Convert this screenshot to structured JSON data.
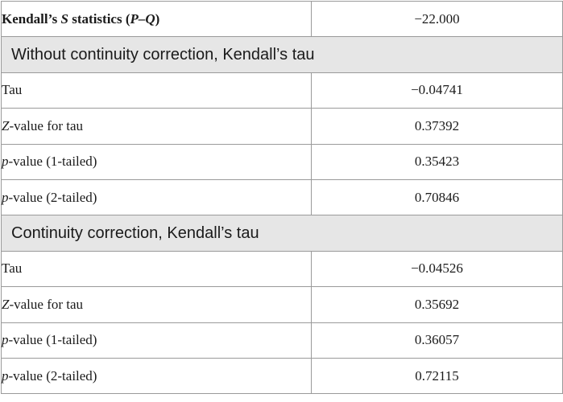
{
  "header": {
    "label_pre": "Kendall’s ",
    "label_var": "S",
    "label_mid": " statistics (",
    "label_expr": "P–Q",
    "label_post": ")",
    "value": "−22.000"
  },
  "sections": [
    {
      "title": "Without continuity correction, Kendall’s tau",
      "rows": [
        {
          "label_italic": "",
          "label_text": "Tau",
          "value": "−0.04741"
        },
        {
          "label_italic": "Z",
          "label_text": "-value for tau",
          "value": "0.37392"
        },
        {
          "label_italic": "p",
          "label_text": "-value (1-tailed)",
          "value": "0.35423"
        },
        {
          "label_italic": "p",
          "label_text": "-value (2-tailed)",
          "value": "0.70846"
        }
      ]
    },
    {
      "title": "Continuity correction, Kendall’s tau",
      "rows": [
        {
          "label_italic": "",
          "label_text": "Tau",
          "value": "−0.04526"
        },
        {
          "label_italic": "Z",
          "label_text": "-value for tau",
          "value": "0.35692"
        },
        {
          "label_italic": "p",
          "label_text": "-value (1-tailed)",
          "value": "0.36057"
        },
        {
          "label_italic": "p",
          "label_text": "-value (2-tailed)",
          "value": "0.72115"
        }
      ]
    }
  ]
}
